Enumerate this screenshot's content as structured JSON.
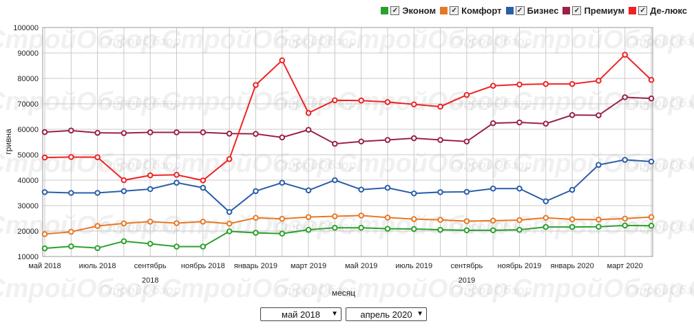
{
  "chart_data": {
    "type": "line",
    "watermark": "СтройОбзор",
    "xlabel": "месяц",
    "ylabel": "гривна",
    "ylim": [
      10000,
      100000
    ],
    "yticks": [
      10000,
      20000,
      30000,
      40000,
      50000,
      60000,
      70000,
      80000,
      90000,
      100000
    ],
    "grid": true,
    "legend_position": "top-right",
    "x": [
      "2018-05",
      "2018-06",
      "2018-07",
      "2018-08",
      "2018-09",
      "2018-10",
      "2018-11",
      "2018-12",
      "2019-01",
      "2019-02",
      "2019-03",
      "2019-04",
      "2019-05",
      "2019-06",
      "2019-07",
      "2019-08",
      "2019-09",
      "2019-10",
      "2019-11",
      "2019-12",
      "2020-01",
      "2020-02",
      "2020-03",
      "2020-04"
    ],
    "xtick_labels": [
      {
        "month": "2018-05",
        "label": "май 2018",
        "year": ""
      },
      {
        "month": "2018-07",
        "label": "июль 2018",
        "year": ""
      },
      {
        "month": "2018-09",
        "label": "сентябрь",
        "year": "2018"
      },
      {
        "month": "2018-11",
        "label": "ноябрь 2018",
        "year": ""
      },
      {
        "month": "2019-01",
        "label": "январь 2019",
        "year": ""
      },
      {
        "month": "2019-03",
        "label": "март 2019",
        "year": ""
      },
      {
        "month": "2019-05",
        "label": "май 2019",
        "year": ""
      },
      {
        "month": "2019-07",
        "label": "июль 2019",
        "year": ""
      },
      {
        "month": "2019-09",
        "label": "сентябрь",
        "year": "2019"
      },
      {
        "month": "2019-11",
        "label": "ноябрь 2019",
        "year": ""
      },
      {
        "month": "2020-01",
        "label": "январь 2020",
        "year": ""
      },
      {
        "month": "2020-03",
        "label": "март 2020",
        "year": ""
      }
    ],
    "series": [
      {
        "name": "Эконом",
        "color": "#2ca02c",
        "values": [
          13200,
          14000,
          13300,
          16000,
          15000,
          13900,
          13900,
          19900,
          19300,
          19000,
          20500,
          21300,
          21300,
          20900,
          20800,
          20500,
          20300,
          20300,
          20500,
          21600,
          21600,
          21700,
          22200,
          22100
        ]
      },
      {
        "name": "Комфорт",
        "color": "#e87722",
        "values": [
          18800,
          19700,
          22000,
          23000,
          23700,
          23100,
          23700,
          22900,
          25200,
          24800,
          25500,
          25800,
          26100,
          25300,
          24700,
          24400,
          23900,
          24100,
          24300,
          25200,
          24600,
          24500,
          24900,
          25500
        ]
      },
      {
        "name": "Бизнес",
        "color": "#2a5ea8",
        "values": [
          35300,
          35000,
          35000,
          35700,
          36500,
          39000,
          37000,
          27500,
          35700,
          39000,
          36000,
          40000,
          36300,
          37000,
          34800,
          35300,
          35400,
          36700,
          36700,
          31700,
          36200,
          46000,
          48000,
          47300
        ]
      },
      {
        "name": "Премиум",
        "color": "#992244",
        "values": [
          58900,
          59500,
          58600,
          58500,
          58800,
          58800,
          58800,
          58300,
          58200,
          56800,
          59800,
          54300,
          55200,
          55800,
          56500,
          55800,
          55200,
          62400,
          62700,
          62200,
          65600,
          65500,
          72600,
          72100
        ]
      },
      {
        "name": "Де-люкс",
        "color": "#ee2222",
        "values": [
          48900,
          49100,
          49000,
          40000,
          41900,
          42100,
          39900,
          48300,
          77400,
          87100,
          66400,
          71400,
          71300,
          70700,
          69800,
          68900,
          73500,
          77100,
          77600,
          77800,
          77800,
          79100,
          89300,
          79400
        ]
      }
    ]
  },
  "controls": {
    "from_select": "май 2018",
    "to_select": "апрель 2020"
  }
}
